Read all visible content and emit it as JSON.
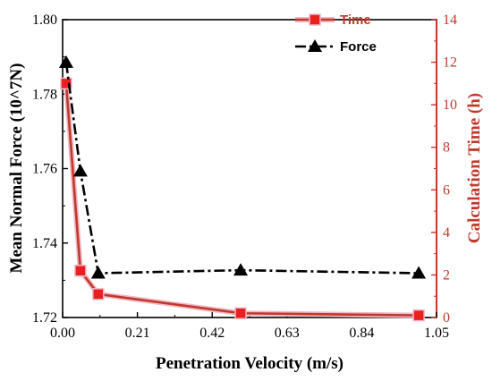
{
  "chart_data": {
    "type": "line",
    "title": "",
    "xlabel": "Penetration Velocity (m/s)",
    "ylabel_left": "Mean Normal Force (10^7N)",
    "ylabel_right": "Calculation Time (h)",
    "xlim": [
      0.0,
      1.05
    ],
    "ylim_left": [
      1.72,
      1.8
    ],
    "ylim_right": [
      0,
      14
    ],
    "x_ticks": [
      "0.00",
      "0.21",
      "0.42",
      "0.63",
      "0.84",
      "1.05"
    ],
    "y_ticks_left": [
      "1.72",
      "1.74",
      "1.76",
      "1.78",
      "1.80"
    ],
    "y_ticks_right": [
      "0",
      "2",
      "4",
      "6",
      "8",
      "10",
      "12",
      "14"
    ],
    "grid": false,
    "legend_position": "top-right",
    "series": [
      {
        "name": "Time",
        "axis": "right",
        "color": "#c0392b",
        "marker_color": "#e82020",
        "marker": "square",
        "line_style": "solid",
        "x": [
          0.01,
          0.05,
          0.1,
          0.5,
          1.0
        ],
        "y": [
          11.0,
          2.2,
          1.1,
          0.2,
          0.1
        ]
      },
      {
        "name": "Force",
        "axis": "left",
        "color": "#000000",
        "marker_color": "#000000",
        "marker": "triangle",
        "line_style": "dashdot",
        "x": [
          0.01,
          0.05,
          0.1,
          0.5,
          1.0
        ],
        "y": [
          1.7885,
          1.7593,
          1.7319,
          1.7327,
          1.7319
        ]
      }
    ]
  }
}
